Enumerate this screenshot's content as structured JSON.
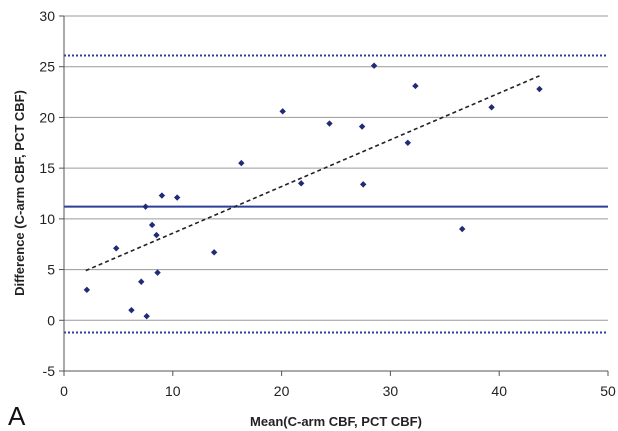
{
  "panel_label": "A",
  "chart_data": {
    "type": "scatter",
    "title": "",
    "xlabel": "Mean(C-arm CBF, PCT CBF)",
    "ylabel": "Difference (C-arm CBF, PCT CBF)",
    "xlim": [
      0,
      50
    ],
    "ylim": [
      -5,
      30
    ],
    "x_ticks": [
      "0",
      "10",
      "20",
      "30",
      "40",
      "50"
    ],
    "y_ticks": [
      "-5",
      "0",
      "5",
      "10",
      "15",
      "20",
      "25",
      "30"
    ],
    "grid": "horizontal",
    "points": [
      {
        "x": 2.1,
        "y": 3.0
      },
      {
        "x": 4.8,
        "y": 7.1
      },
      {
        "x": 6.2,
        "y": 1.0
      },
      {
        "x": 7.1,
        "y": 3.8
      },
      {
        "x": 7.5,
        "y": 11.2
      },
      {
        "x": 7.6,
        "y": 0.4
      },
      {
        "x": 8.1,
        "y": 9.4
      },
      {
        "x": 8.5,
        "y": 8.4
      },
      {
        "x": 8.6,
        "y": 4.7
      },
      {
        "x": 9.0,
        "y": 12.3
      },
      {
        "x": 10.4,
        "y": 12.1
      },
      {
        "x": 13.8,
        "y": 6.7
      },
      {
        "x": 16.3,
        "y": 15.5
      },
      {
        "x": 20.1,
        "y": 20.6
      },
      {
        "x": 21.8,
        "y": 13.5
      },
      {
        "x": 24.4,
        "y": 19.4
      },
      {
        "x": 27.4,
        "y": 19.1
      },
      {
        "x": 27.5,
        "y": 13.4
      },
      {
        "x": 28.5,
        "y": 25.1
      },
      {
        "x": 31.6,
        "y": 17.5
      },
      {
        "x": 32.3,
        "y": 23.1
      },
      {
        "x": 36.6,
        "y": 9.0
      },
      {
        "x": 39.3,
        "y": 21.0
      },
      {
        "x": 43.7,
        "y": 22.8
      }
    ],
    "mean_line": {
      "y": 11.2,
      "color": "#2a3f9a",
      "style": "solid"
    },
    "limits_of_agreement": [
      {
        "y": 26.1,
        "color": "#2a3f9a",
        "style": "dotted"
      },
      {
        "y": -1.2,
        "color": "#2a3f9a",
        "style": "dotted"
      }
    ],
    "trend_line": {
      "x": [
        2,
        43.7
      ],
      "y": [
        4.9,
        24.1
      ],
      "color": "#222222",
      "style": "dashed"
    },
    "point_color": "#1f2a78"
  }
}
